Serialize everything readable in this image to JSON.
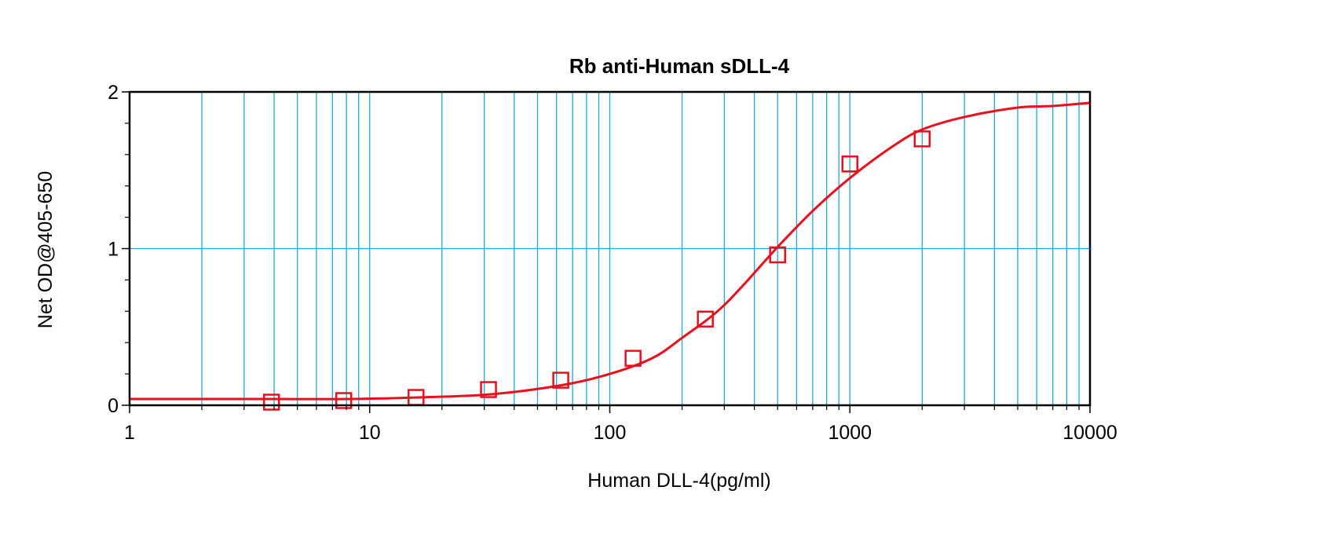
{
  "chart_data": {
    "type": "scatter",
    "title": "Rb anti-Human sDLL-4",
    "xlabel": "Human DLL-4(pg/ml)",
    "ylabel": "Net OD@405-650",
    "x_scale": "log",
    "xlim": [
      1,
      10000
    ],
    "ylim": [
      0,
      2
    ],
    "x_ticks": [
      "1",
      "10",
      "100",
      "1000",
      "10000"
    ],
    "y_ticks": [
      "0",
      "1",
      "2"
    ],
    "grid": true,
    "legend": "none",
    "colors": {
      "grid": "#1ea7e1",
      "series": "#e8101c",
      "axis": "#000000"
    },
    "series": [
      {
        "type": "scatter",
        "marker": "open-square",
        "x": [
          3.9,
          7.8,
          15.6,
          31.25,
          62.5,
          125,
          250,
          500,
          1000,
          2000
        ],
        "y": [
          0.02,
          0.03,
          0.05,
          0.1,
          0.16,
          0.3,
          0.55,
          0.96,
          1.54,
          1.7
        ]
      },
      {
        "type": "line",
        "x": [
          1,
          2,
          4,
          8,
          16,
          32,
          64,
          100,
          150,
          200,
          300,
          500,
          700,
          1000,
          1500,
          2000,
          3000,
          5000,
          7000,
          10000
        ],
        "y": [
          0.04,
          0.04,
          0.04,
          0.04,
          0.05,
          0.07,
          0.13,
          0.2,
          0.3,
          0.43,
          0.64,
          1.01,
          1.24,
          1.45,
          1.65,
          1.76,
          1.84,
          1.9,
          1.91,
          1.93
        ]
      }
    ]
  }
}
